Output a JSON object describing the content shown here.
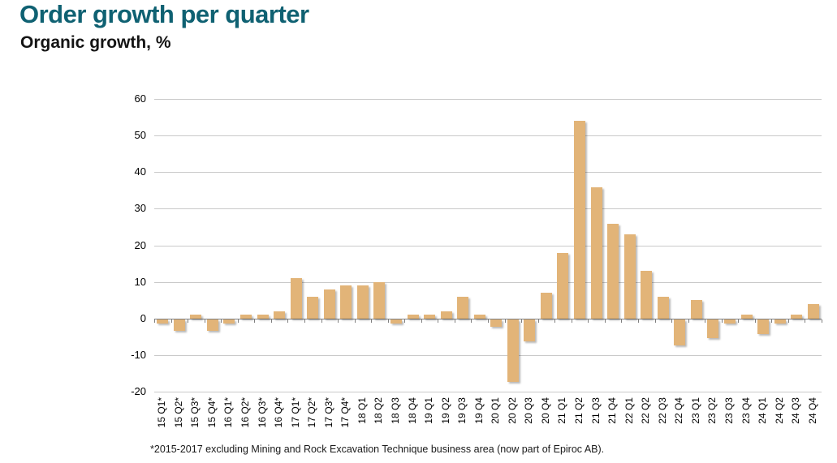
{
  "header": {
    "title": "Order growth per quarter",
    "subtitle": "Organic growth, %"
  },
  "footnote": "*2015-2017 excluding Mining and Rock Excavation Technique business area (now part of Epiroc AB).",
  "colors": {
    "title_text": "#0f6172",
    "subtitle_text": "#141414",
    "bar": "#e2b478",
    "gridline": "#c9c9c9",
    "zero_axis": "#7f7f7f",
    "axis_text": "#000000"
  },
  "chart_data": {
    "type": "bar",
    "title": "Order growth per quarter",
    "subtitle": "Organic growth, %",
    "ylabel": "Organic growth, %",
    "xlabel": "",
    "categories": [
      "15 Q1*",
      "15 Q2*",
      "15 Q3*",
      "15 Q4*",
      "16 Q1*",
      "16 Q2*",
      "16 Q3*",
      "16 Q4*",
      "17 Q1*",
      "17 Q2*",
      "17 Q3*",
      "17 Q4*",
      "18 Q1",
      "18 Q2",
      "18 Q3",
      "18 Q4",
      "19 Q1",
      "19 Q2",
      "19 Q3",
      "19 Q4",
      "20 Q1",
      "20 Q2",
      "20 Q3",
      "20 Q4",
      "21 Q1",
      "21 Q2",
      "21 Q3",
      "21 Q4",
      "22 Q1",
      "22 Q2",
      "22 Q3",
      "22 Q4",
      "23 Q1",
      "23 Q2",
      "23 Q3",
      "23 Q4",
      "24 Q1",
      "24 Q2",
      "24 Q3",
      "24 Q4"
    ],
    "values": [
      -1,
      -3,
      1,
      -3,
      -1,
      1,
      1,
      2,
      11,
      6,
      8,
      9,
      9,
      10,
      -1,
      1,
      1,
      2,
      6,
      1,
      -2,
      -17,
      -6,
      7,
      18,
      54,
      36,
      26,
      23,
      13,
      6,
      -7,
      5,
      -5,
      -1,
      1,
      -4,
      -1,
      1,
      4
    ],
    "ylim": [
      -20,
      60
    ],
    "yticks": [
      60,
      50,
      40,
      30,
      20,
      10,
      0,
      -10,
      -20
    ],
    "grid": true,
    "legend": false,
    "bar_color": "#e2b478"
  }
}
